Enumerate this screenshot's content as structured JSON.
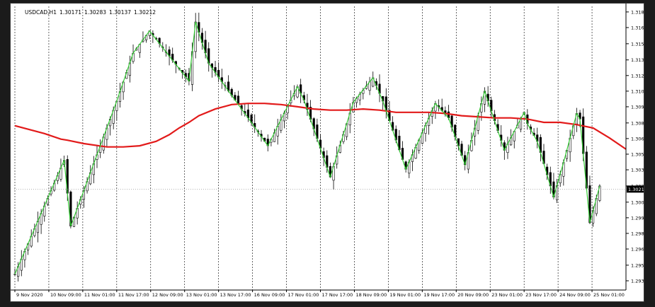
{
  "header": {
    "symbol": "USDCAD,H1",
    "open": "1.30171",
    "high": "1.30283",
    "low": "1.30137",
    "close": "1.30212"
  },
  "chart_data": {
    "type": "line",
    "ylim": [
      1.2932,
      1.3185
    ],
    "y_ticks": [
      "1.31800",
      "1.31660",
      "1.31515",
      "1.31370",
      "1.31230",
      "1.31090",
      "1.30950",
      "1.30805",
      "1.30665",
      "1.30525",
      "1.30385",
      "1.30240",
      "1.30095",
      "1.29955",
      "1.29815",
      "1.29675",
      "1.29530",
      "1.29390"
    ],
    "current_price_label": "1.30212",
    "current_price": 1.30212,
    "x_labels": [
      "9 Nov 2020",
      "10 Nov 09:00",
      "11 Nov 01:00",
      "11 Nov 17:00",
      "12 Nov 09:00",
      "13 Nov 01:00",
      "13 Nov 17:00",
      "16 Nov 09:00",
      "17 Nov 01:00",
      "17 Nov 17:00",
      "18 Nov 09:00",
      "19 Nov 01:00",
      "19 Nov 17:00",
      "20 Nov 09:00",
      "23 Nov 01:00",
      "23 Nov 17:00",
      "24 Nov 09:00",
      "25 Nov 01:00"
    ],
    "bar_count": 186,
    "colors": {
      "candle_bull": "#ffffff",
      "candle_bear": "#000000",
      "candle_outline": "#000000",
      "moving_average": "#e21a1a",
      "zigzag": "#33cc33",
      "grid": "#000000"
    },
    "grid": true,
    "series": [
      {
        "x": [
          0,
          9,
          14,
          16,
          21,
          28,
          33,
          38,
          43,
          47,
          50,
          53,
          56,
          61,
          66,
          71,
          76,
          81,
          86,
          91,
          96,
          101,
          106,
          111,
          116,
          121,
          126,
          131,
          136,
          141,
          146,
          151,
          156,
          161,
          166,
          171,
          176,
          181,
          186
        ],
        "values": [
          1.3078,
          1.3071,
          1.3066,
          1.3065,
          1.3062,
          1.3059,
          1.3059,
          1.306,
          1.3064,
          1.307,
          1.3076,
          1.3081,
          1.3087,
          1.3093,
          1.3097,
          1.3098,
          1.3098,
          1.3097,
          1.3095,
          1.3093,
          1.3092,
          1.3092,
          1.3093,
          1.3092,
          1.309,
          1.309,
          1.309,
          1.3089,
          1.3087,
          1.3086,
          1.3085,
          1.3085,
          1.3084,
          1.3081,
          1.3081,
          1.3079,
          1.3076,
          1.3067,
          1.3057
        ]
      },
      {
        "x": [
          0,
          15,
          17,
          31,
          36,
          41,
          53,
          55,
          59,
          67,
          71,
          77,
          86,
          88,
          96,
          103,
          109,
          112,
          119,
          128,
          132,
          137,
          143,
          149,
          155,
          156,
          159,
          164,
          167,
          171,
          172,
          175,
          178
        ],
        "values": [
          1.2945,
          1.3047,
          1.2988,
          1.31,
          1.3143,
          1.3163,
          1.3118,
          1.3171,
          1.3134,
          1.3101,
          1.3085,
          1.306,
          1.3113,
          1.3101,
          1.3032,
          1.3099,
          1.3121,
          1.31,
          1.3039,
          1.3098,
          1.3085,
          1.3043,
          1.3109,
          1.3056,
          1.309,
          1.308,
          1.3064,
          1.3014,
          1.3045,
          1.3089,
          1.3084,
          1.2991,
          1.3024
        ]
      }
    ]
  }
}
